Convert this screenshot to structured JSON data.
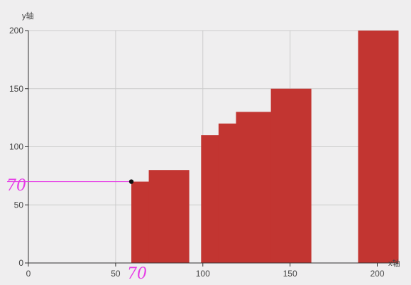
{
  "chart_data": {
    "type": "bar",
    "xlabel": "x轴",
    "ylabel": "y轴",
    "xlim": [
      0,
      212
    ],
    "ylim": [
      0,
      200
    ],
    "x_ticks": [
      0,
      50,
      100,
      150,
      200
    ],
    "y_ticks": [
      0,
      50,
      100,
      150,
      200
    ],
    "grid": true,
    "bars": [
      {
        "x0": 59,
        "x1": 69,
        "value": 70
      },
      {
        "x0": 69,
        "x1": 92,
        "value": 80
      },
      {
        "x0": 99,
        "x1": 109,
        "value": 110
      },
      {
        "x0": 109,
        "x1": 119,
        "value": 120
      },
      {
        "x0": 119,
        "x1": 139,
        "value": 130
      },
      {
        "x0": 139,
        "x1": 162,
        "value": 150
      },
      {
        "x0": 189,
        "x1": 212,
        "value": 200
      }
    ],
    "highlight_point": {
      "x": 59,
      "y": 70
    },
    "annotations": {
      "x_mark": "70",
      "y_mark": "70"
    }
  },
  "colors": {
    "bar": "#c23531",
    "grid": "#cccccc",
    "axis": "#333333",
    "highlight": "#e63ce6",
    "point": "#111111"
  }
}
